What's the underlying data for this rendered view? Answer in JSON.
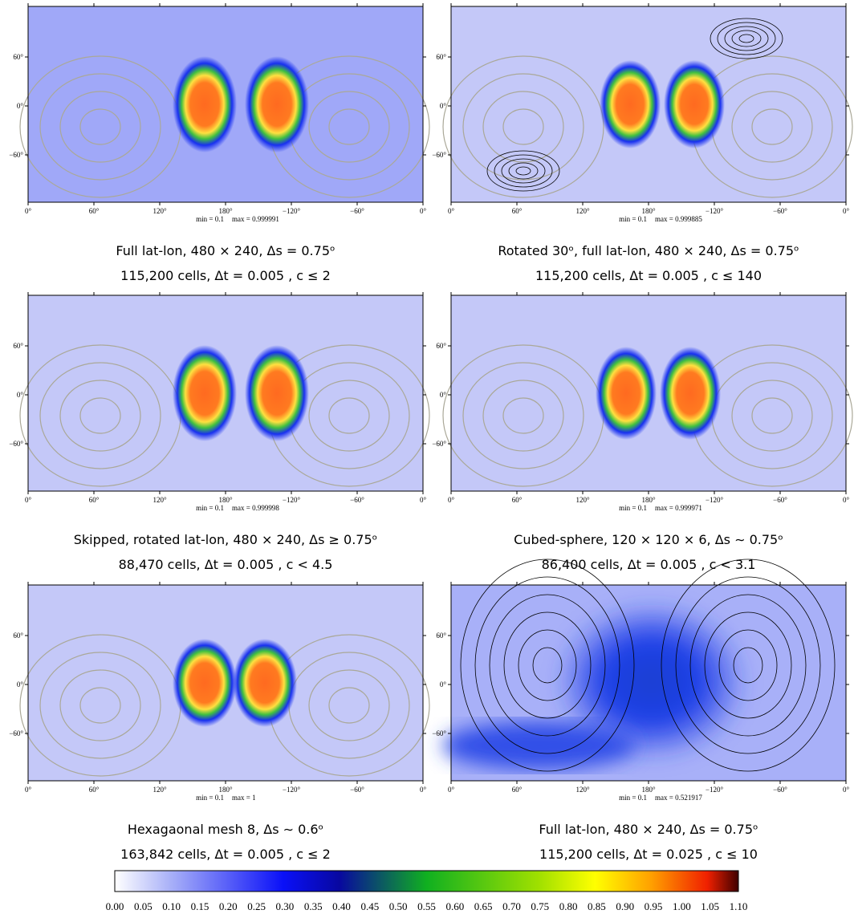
{
  "axes": {
    "x_ticks": [
      "0°",
      "60°",
      "120°",
      "180°",
      "−120°",
      "−60°",
      "0°"
    ],
    "y_ticks": [
      "60°",
      "0°",
      "−60°"
    ]
  },
  "panels": [
    {
      "min": "min = 0.1",
      "max": "max = 0.999991",
      "caption": [
        "Full lat-lon, 480 × 240, Δs = 0.75ᵒ",
        "115,200 cells, Δt = 0.005 , c ≤ 2"
      ]
    },
    {
      "min": "min = 0.1",
      "max": "max = 0.999885",
      "caption": [
        "Rotated 30ᵒ, full lat-lon, 480 × 240, Δs = 0.75ᵒ",
        "115,200 cells, Δt = 0.005 , c ≤ 140"
      ]
    },
    {
      "min": "min = 0.1",
      "max": "max = 0.999998",
      "caption": [
        "Skipped, rotated lat-lon, 480 × 240, Δs ≥ 0.75ᵒ",
        "88,470 cells, Δt = 0.005 , c < 4.5"
      ]
    },
    {
      "min": "min = 0.1",
      "max": "max = 0.999971",
      "caption": [
        "Cubed-sphere, 120 × 120 × 6, Δs ∼ 0.75ᵒ",
        "86,400 cells, Δt = 0.005 , c < 3.1"
      ]
    },
    {
      "min": "min = 0.1",
      "max": "max = 1",
      "caption": [
        "Hexagaonal mesh 8, Δs ∼ 0.6ᵒ",
        "163,842 cells, Δt = 0.005 , c ≤ 2"
      ]
    },
    {
      "min": "min = 0.1",
      "max": "max = 0.521917",
      "caption": [
        "Full lat-lon, 480 × 240, Δs = 0.75ᵒ",
        "115,200 cells, Δt = 0.025 , c ≤ 10"
      ]
    }
  ],
  "colorbar": {
    "ticks": [
      "0.00",
      "0.05",
      "0.10",
      "0.15",
      "0.20",
      "0.25",
      "0.30",
      "0.35",
      "0.40",
      "0.45",
      "0.50",
      "0.55",
      "0.60",
      "0.65",
      "0.70",
      "0.75",
      "0.80",
      "0.85",
      "0.90",
      "0.95",
      "1.00",
      "1.05",
      "1.10"
    ]
  }
}
